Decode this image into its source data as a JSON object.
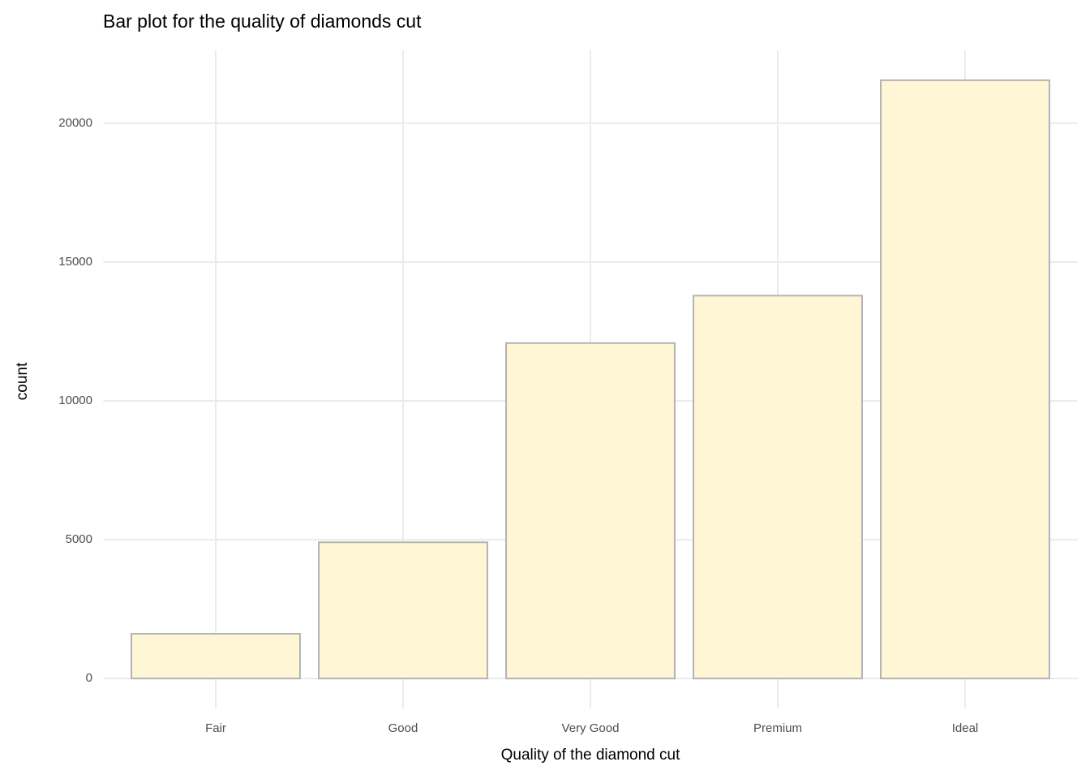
{
  "chart_data": {
    "type": "bar",
    "title": "Bar plot for the quality of diamonds cut",
    "x_label": "Quality of the diamond cut",
    "y_label": "count",
    "categories": [
      "Fair",
      "Good",
      "Very Good",
      "Premium",
      "Ideal"
    ],
    "values": [
      1610,
      4906,
      12082,
      13791,
      21551
    ],
    "color": "#fff6d5",
    "edge_color": "#b3b3b3",
    "ylim": [
      -1078,
      22629
    ],
    "yticks": [
      0,
      5000,
      10000,
      15000,
      20000
    ],
    "grid": true
  }
}
